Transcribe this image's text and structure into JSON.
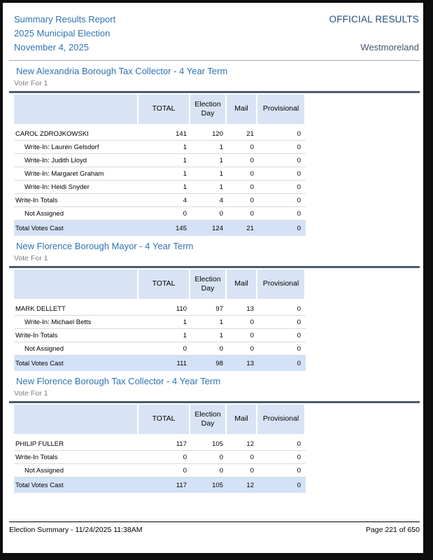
{
  "header": {
    "title": "Summary Results Report",
    "subtitle": "2025 Municipal Election",
    "date": "November 4, 2025",
    "official": "OFFICIAL RESULTS",
    "county": "Westmoreland"
  },
  "columns": [
    "TOTAL",
    "Election Day",
    "Mail",
    "Provisional"
  ],
  "contests": [
    {
      "title": "New Alexandria Borough Tax Collector - 4 Year Term",
      "vote_for": "Vote For 1",
      "rows": [
        {
          "label": "CAROL ZDROJKOWSKI",
          "indent": false,
          "type": "normal",
          "values": [
            "141",
            "120",
            "21",
            "0"
          ]
        },
        {
          "label": "Write-In: Lauren Gelsdorf",
          "indent": true,
          "type": "normal",
          "values": [
            "1",
            "1",
            "0",
            "0"
          ]
        },
        {
          "label": "Write-In: Judith Lloyd",
          "indent": true,
          "type": "normal",
          "values": [
            "1",
            "1",
            "0",
            "0"
          ]
        },
        {
          "label": "Write-In: Margaret Graham",
          "indent": true,
          "type": "normal",
          "values": [
            "1",
            "1",
            "0",
            "0"
          ]
        },
        {
          "label": "Write-In: Heidi Snyder",
          "indent": true,
          "type": "normal",
          "values": [
            "1",
            "1",
            "0",
            "0"
          ]
        },
        {
          "label": "Write-In Totals",
          "indent": false,
          "type": "normal",
          "values": [
            "4",
            "4",
            "0",
            "0"
          ]
        },
        {
          "label": "Not Assigned",
          "indent": true,
          "type": "normal",
          "values": [
            "0",
            "0",
            "0",
            "0"
          ]
        },
        {
          "label": "Total Votes Cast",
          "indent": false,
          "type": "total",
          "values": [
            "145",
            "124",
            "21",
            "0"
          ]
        }
      ]
    },
    {
      "title": "New Florence Borough Mayor - 4 Year Term",
      "vote_for": "Vote For 1",
      "rows": [
        {
          "label": "MARK DELLETT",
          "indent": false,
          "type": "normal",
          "values": [
            "110",
            "97",
            "13",
            "0"
          ]
        },
        {
          "label": "Write-In: Michael Betts",
          "indent": true,
          "type": "normal",
          "values": [
            "1",
            "1",
            "0",
            "0"
          ]
        },
        {
          "label": "Write-In Totals",
          "indent": false,
          "type": "normal",
          "values": [
            "1",
            "1",
            "0",
            "0"
          ]
        },
        {
          "label": "Not Assigned",
          "indent": true,
          "type": "normal",
          "values": [
            "0",
            "0",
            "0",
            "0"
          ]
        },
        {
          "label": "Total Votes Cast",
          "indent": false,
          "type": "total",
          "values": [
            "111",
            "98",
            "13",
            "0"
          ]
        }
      ]
    },
    {
      "title": "New Florence Borough Tax Collector - 4 Year Term",
      "vote_for": "Vote For 1",
      "rows": [
        {
          "label": "PHILIP FULLER",
          "indent": false,
          "type": "normal",
          "values": [
            "117",
            "105",
            "12",
            "0"
          ]
        },
        {
          "label": "Write-In Totals",
          "indent": false,
          "type": "normal",
          "values": [
            "0",
            "0",
            "0",
            "0"
          ]
        },
        {
          "label": "Not Assigned",
          "indent": true,
          "type": "normal",
          "values": [
            "0",
            "0",
            "0",
            "0"
          ]
        },
        {
          "label": "Total Votes Cast",
          "indent": false,
          "type": "total",
          "values": [
            "117",
            "105",
            "12",
            "0"
          ]
        }
      ]
    }
  ],
  "footer": {
    "left": "Election Summary - 11/24/2025 11:38AM",
    "right": "Page 221 of 650"
  },
  "colors": {
    "accent_blue": "#2E74B5",
    "official_navy": "#1F4E79",
    "county_slate": "#44546A",
    "table_header_bg": "#D8E4F5",
    "total_row_bg": "#D4E2F7",
    "rule_dark": "#4A5B6C"
  }
}
